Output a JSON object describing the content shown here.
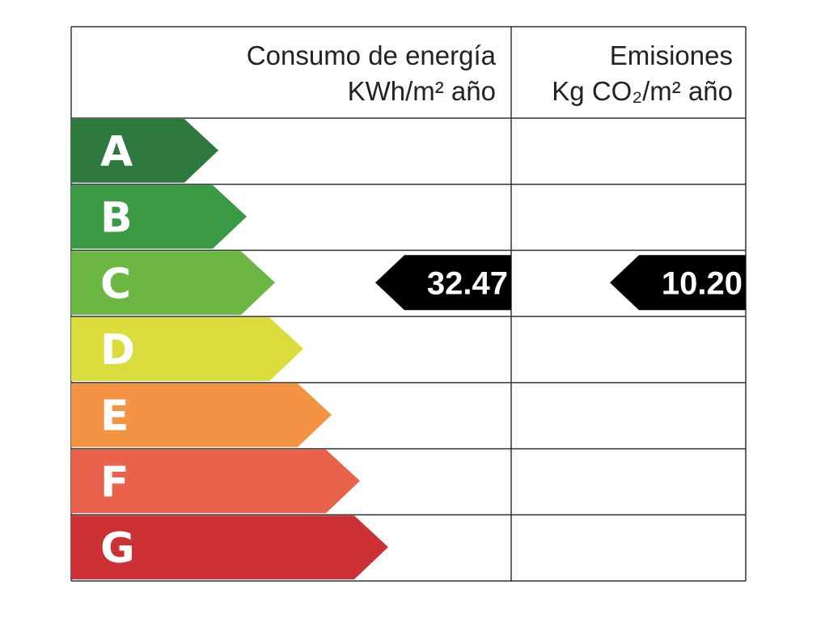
{
  "header": {
    "energy": {
      "title": "Consumo de energía",
      "unit": "KWh/m² año"
    },
    "emissions": {
      "title": "Emisiones",
      "unit": "Kg CO₂/m² año"
    }
  },
  "grades": [
    {
      "letter": "A",
      "color": "#2e7a3e"
    },
    {
      "letter": "B",
      "color": "#3a9a44"
    },
    {
      "letter": "C",
      "color": "#6cb643"
    },
    {
      "letter": "D",
      "color": "#dadd3c"
    },
    {
      "letter": "E",
      "color": "#f39343"
    },
    {
      "letter": "F",
      "color": "#e9624c"
    },
    {
      "letter": "G",
      "color": "#cc3136"
    }
  ],
  "rating": {
    "energy": {
      "grade": "C",
      "value": "32.47"
    },
    "emissions": {
      "grade": "C",
      "value": "10.20"
    }
  }
}
